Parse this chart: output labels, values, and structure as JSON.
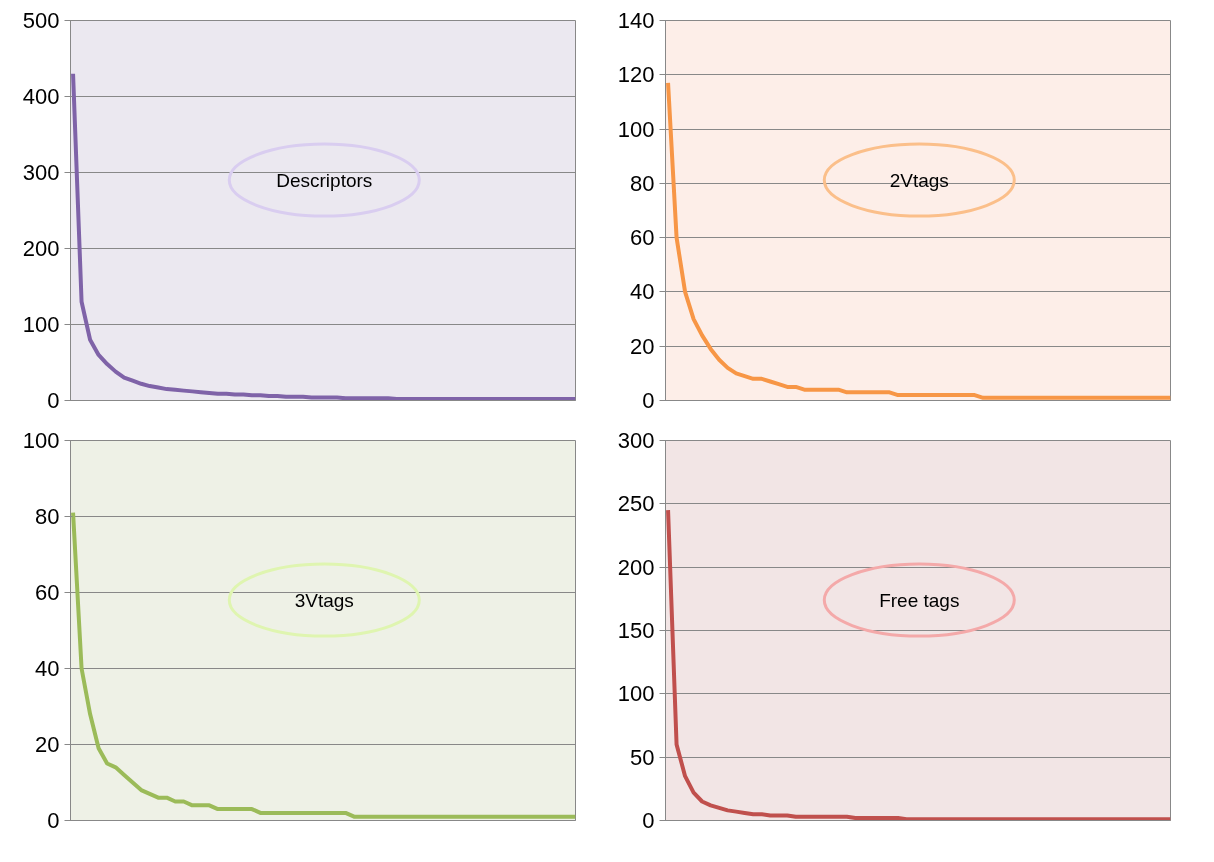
{
  "chart_data": [
    {
      "type": "line",
      "title": "Descriptors",
      "categories": [
        null,
        null,
        null,
        null,
        null,
        null,
        null,
        null,
        null,
        null,
        null,
        null,
        null,
        null,
        null,
        null,
        null,
        null,
        null,
        null,
        null,
        null,
        null,
        null,
        null,
        null,
        null,
        null,
        null,
        null,
        null,
        null,
        null,
        null,
        null,
        null,
        null,
        null,
        null,
        null,
        null,
        null,
        null,
        null,
        null,
        null,
        null,
        null,
        null,
        null,
        null,
        null,
        null,
        null,
        null,
        null,
        null,
        null,
        null,
        null
      ],
      "series": [
        {
          "color": "#7f63a8",
          "values": [
            430,
            130,
            80,
            60,
            48,
            38,
            30,
            26,
            22,
            19,
            17,
            15,
            14,
            13,
            12,
            11,
            10,
            9,
            9,
            8,
            8,
            7,
            7,
            6,
            6,
            5,
            5,
            5,
            4,
            4,
            4,
            4,
            3,
            3,
            3,
            3,
            3,
            3,
            2,
            2,
            2,
            2,
            2,
            2,
            2,
            2,
            2,
            2,
            2,
            2,
            2,
            2,
            2,
            2,
            2,
            2,
            2,
            2,
            2,
            2
          ]
        }
      ],
      "ylim": [
        0,
        500
      ],
      "yticks": [
        0,
        100,
        200,
        300,
        400,
        500
      ],
      "grid": "y",
      "tick_labels": "y",
      "marker": "none",
      "line_style": "solid"
    },
    {
      "type": "line",
      "title": "2Vtags",
      "categories": [
        null,
        null,
        null,
        null,
        null,
        null,
        null,
        null,
        null,
        null,
        null,
        null,
        null,
        null,
        null,
        null,
        null,
        null,
        null,
        null,
        null,
        null,
        null,
        null,
        null,
        null,
        null,
        null,
        null,
        null,
        null,
        null,
        null,
        null,
        null,
        null,
        null,
        null,
        null,
        null,
        null,
        null,
        null,
        null,
        null,
        null,
        null,
        null,
        null,
        null,
        null,
        null,
        null,
        null,
        null,
        null,
        null,
        null,
        null,
        null
      ],
      "series": [
        {
          "color": "#f79646",
          "values": [
            117,
            60,
            40,
            30,
            24,
            19,
            15,
            12,
            10,
            9,
            8,
            8,
            7,
            6,
            5,
            5,
            4,
            4,
            4,
            4,
            4,
            3,
            3,
            3,
            3,
            3,
            3,
            2,
            2,
            2,
            2,
            2,
            2,
            2,
            2,
            2,
            2,
            1,
            1,
            1,
            1,
            1,
            1,
            1,
            1,
            1,
            1,
            1,
            1,
            1,
            1,
            1,
            1,
            1,
            1,
            1,
            1,
            1,
            1,
            1
          ]
        }
      ],
      "ylim": [
        0,
        140
      ],
      "yticks": [
        0,
        20,
        40,
        60,
        80,
        100,
        120,
        140
      ],
      "grid": "y",
      "tick_labels": "y",
      "marker": "none",
      "line_style": "solid"
    },
    {
      "type": "line",
      "title": "3Vtags",
      "categories": [
        null,
        null,
        null,
        null,
        null,
        null,
        null,
        null,
        null,
        null,
        null,
        null,
        null,
        null,
        null,
        null,
        null,
        null,
        null,
        null,
        null,
        null,
        null,
        null,
        null,
        null,
        null,
        null,
        null,
        null,
        null,
        null,
        null,
        null,
        null,
        null,
        null,
        null,
        null,
        null,
        null,
        null,
        null,
        null,
        null,
        null,
        null,
        null,
        null,
        null,
        null,
        null,
        null,
        null,
        null,
        null,
        null,
        null,
        null,
        null
      ],
      "series": [
        {
          "color": "#9bbb59",
          "values": [
            81,
            40,
            28,
            19,
            15,
            14,
            12,
            10,
            8,
            7,
            6,
            6,
            5,
            5,
            4,
            4,
            4,
            3,
            3,
            3,
            3,
            3,
            2,
            2,
            2,
            2,
            2,
            2,
            2,
            2,
            2,
            2,
            2,
            1,
            1,
            1,
            1,
            1,
            1,
            1,
            1,
            1,
            1,
            1,
            1,
            1,
            1,
            1,
            1,
            1,
            1,
            1,
            1,
            1,
            1,
            1,
            1,
            1,
            1,
            1
          ]
        }
      ],
      "ylim": [
        0,
        100
      ],
      "yticks": [
        0,
        20,
        40,
        60,
        80,
        100
      ],
      "grid": "y",
      "tick_labels": "y",
      "marker": "none",
      "line_style": "solid"
    },
    {
      "type": "line",
      "title": "Free tags",
      "categories": [
        null,
        null,
        null,
        null,
        null,
        null,
        null,
        null,
        null,
        null,
        null,
        null,
        null,
        null,
        null,
        null,
        null,
        null,
        null,
        null,
        null,
        null,
        null,
        null,
        null,
        null,
        null,
        null,
        null,
        null,
        null,
        null,
        null,
        null,
        null,
        null,
        null,
        null,
        null,
        null,
        null,
        null,
        null,
        null,
        null,
        null,
        null,
        null,
        null,
        null,
        null,
        null,
        null,
        null,
        null,
        null,
        null,
        null,
        null,
        null
      ],
      "series": [
        {
          "color": "#c0504d",
          "values": [
            245,
            60,
            35,
            22,
            15,
            12,
            10,
            8,
            7,
            6,
            5,
            5,
            4,
            4,
            4,
            3,
            3,
            3,
            3,
            3,
            3,
            3,
            2,
            2,
            2,
            2,
            2,
            2,
            1,
            1,
            1,
            1,
            1,
            1,
            1,
            1,
            1,
            1,
            1,
            1,
            1,
            1,
            1,
            1,
            1,
            1,
            1,
            1,
            1,
            1,
            1,
            1,
            1,
            1,
            1,
            1,
            1,
            1,
            1,
            1
          ]
        }
      ],
      "ylim": [
        0,
        300
      ],
      "yticks": [
        0,
        50,
        100,
        150,
        200,
        250,
        300
      ],
      "grid": "y",
      "tick_labels": "y",
      "marker": "none",
      "line_style": "solid"
    }
  ]
}
